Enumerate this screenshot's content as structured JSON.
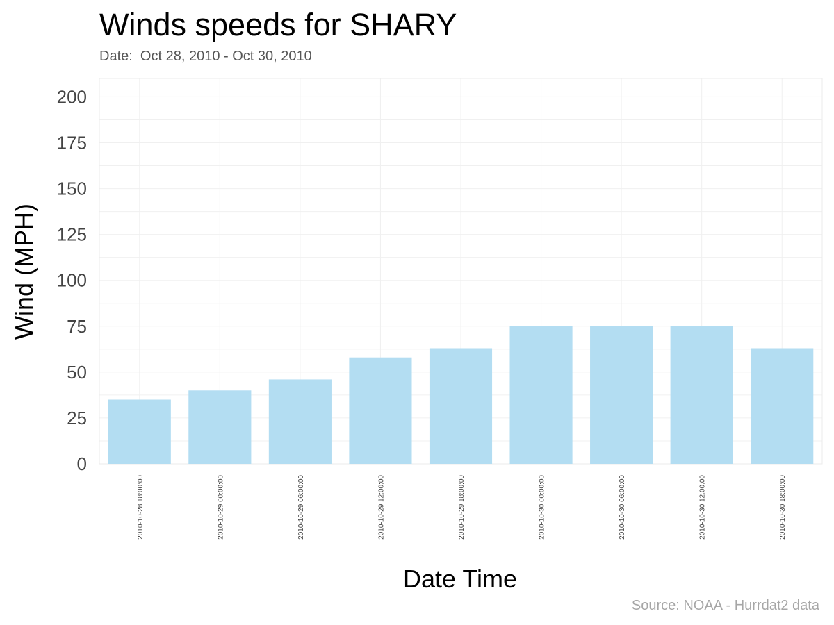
{
  "title": "Winds speeds for SHARY",
  "subtitle": "Date:  Oct 28, 2010 - Oct 30, 2010",
  "source": "Source: NOAA - Hurrdat2 data",
  "chart_data": {
    "type": "bar",
    "title": "Winds speeds for SHARY",
    "subtitle": "Date:  Oct 28, 2010 - Oct 30, 2010",
    "xlabel": "Date Time",
    "ylabel": "Wind (MPH)",
    "categories": [
      "2010-10-28 18:00:00",
      "2010-10-29 00:00:00",
      "2010-10-29 06:00:00",
      "2010-10-29 12:00:00",
      "2010-10-29 18:00:00",
      "2010-10-30 00:00:00",
      "2010-10-30 06:00:00",
      "2010-10-30 12:00:00",
      "2010-10-30 18:00:00"
    ],
    "values": [
      35,
      40,
      46,
      58,
      63,
      75,
      75,
      75,
      63
    ],
    "ylim": [
      0,
      210
    ],
    "yticks": [
      0,
      25,
      50,
      75,
      100,
      125,
      150,
      175,
      200
    ],
    "bar_color": "#b3ddf2",
    "grid_color": "#f0f0f0",
    "grid": true
  }
}
